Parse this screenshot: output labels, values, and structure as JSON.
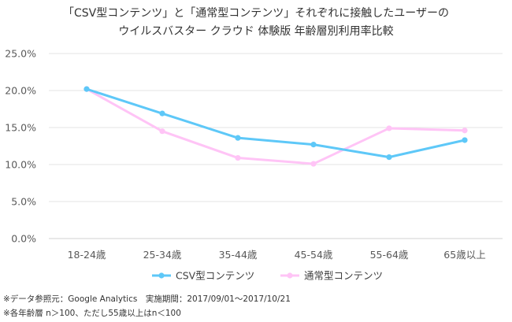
{
  "chart_data": {
    "type": "line",
    "title_lines": [
      "「CSV型コンテンツ」と「通常型コンテンツ」それぞれに接触したユーザーの",
      "ウイルスバスター クラウド 体験版 年齢層別利用率比較"
    ],
    "categories": [
      "18-24歳",
      "25-34歳",
      "35-44歳",
      "45-54歳",
      "55-64歳",
      "65歳以上"
    ],
    "y_ticks": [
      "0.0%",
      "5.0%",
      "10.0%",
      "15.0%",
      "20.0%",
      "25.0%"
    ],
    "ylim": [
      0,
      25
    ],
    "grid": true,
    "legend_position": "bottom",
    "series": [
      {
        "name": "CSV型コンテンツ",
        "color": "#5ec8f8",
        "values": [
          20.2,
          16.9,
          13.6,
          12.7,
          11.0,
          13.3
        ]
      },
      {
        "name": "通常型コンテンツ",
        "color": "#ffc4f6",
        "values": [
          20.2,
          14.5,
          10.9,
          10.1,
          14.9,
          14.6
        ]
      }
    ]
  },
  "footnotes": {
    "line1": "※データ参照元：Google Analytics　実施期間：2017/09/01～2017/10/21",
    "line2": "※各年齢層 n＞100、ただし55歳以上はn＜100"
  }
}
